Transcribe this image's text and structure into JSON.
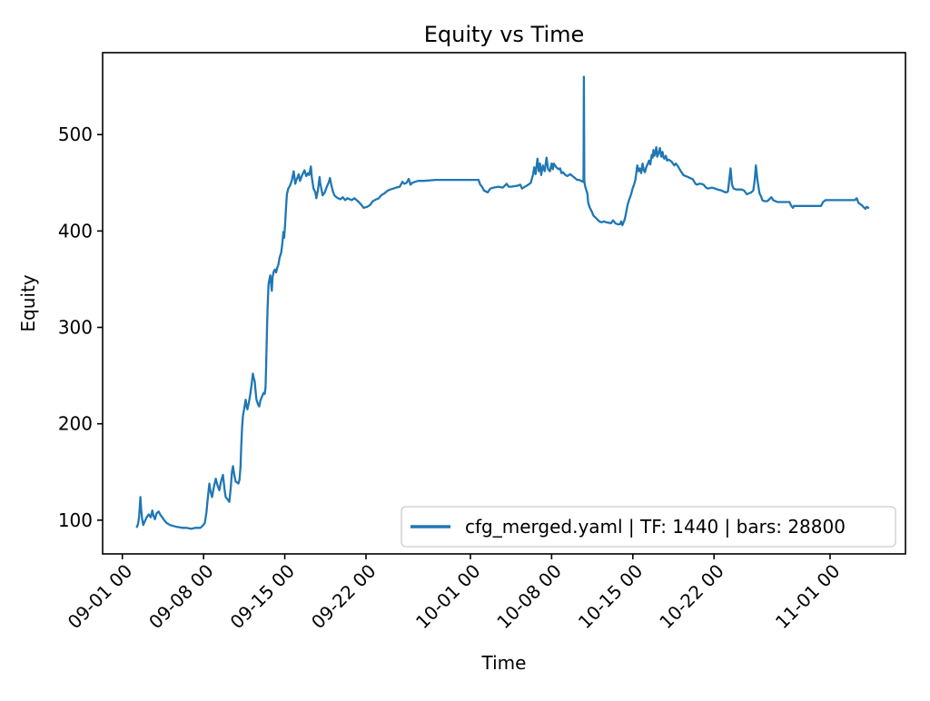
{
  "figure": {
    "background": "#ffffff"
  },
  "chart_data": {
    "type": "line",
    "title": "Equity vs Time",
    "xlabel": "Time",
    "ylabel": "Equity",
    "legend": {
      "label": "cfg_merged.yaml | TF: 1440 | bars: 28800",
      "position": "lower right"
    },
    "series_color": "#1f77b4",
    "spine_color": "#000000",
    "grid": false,
    "xlim_days": [
      -1.7,
      67.5
    ],
    "ylim": [
      65,
      585
    ],
    "x_epoch": "09-01 00",
    "xticks": [
      {
        "label": "09-01 00",
        "day": 0
      },
      {
        "label": "09-08 00",
        "day": 7
      },
      {
        "label": "09-15 00",
        "day": 14
      },
      {
        "label": "09-22 00",
        "day": 21
      },
      {
        "label": "10-01 00",
        "day": 30
      },
      {
        "label": "10-08 00",
        "day": 37
      },
      {
        "label": "10-15 00",
        "day": 44
      },
      {
        "label": "10-22 00",
        "day": 51
      },
      {
        "label": "11-01 00",
        "day": 61
      }
    ],
    "yticks": [
      100,
      200,
      300,
      400,
      500
    ],
    "points": [
      [
        1.25,
        93
      ],
      [
        1.35,
        96
      ],
      [
        1.45,
        104
      ],
      [
        1.56,
        124
      ],
      [
        1.62,
        112
      ],
      [
        1.7,
        102
      ],
      [
        1.8,
        95
      ],
      [
        1.95,
        99
      ],
      [
        2.1,
        103
      ],
      [
        2.27,
        106
      ],
      [
        2.45,
        103
      ],
      [
        2.58,
        110
      ],
      [
        2.7,
        104
      ],
      [
        2.81,
        101
      ],
      [
        2.95,
        107
      ],
      [
        3.13,
        109
      ],
      [
        3.3,
        105
      ],
      [
        3.44,
        103
      ],
      [
        3.6,
        100
      ],
      [
        3.83,
        97
      ],
      [
        4.1,
        95
      ],
      [
        4.38,
        94
      ],
      [
        4.7,
        93
      ],
      [
        5.16,
        92
      ],
      [
        5.5,
        92
      ],
      [
        5.94,
        91
      ],
      [
        6.3,
        92
      ],
      [
        6.72,
        92
      ],
      [
        6.9,
        94
      ],
      [
        7.11,
        97
      ],
      [
        7.25,
        108
      ],
      [
        7.34,
        120
      ],
      [
        7.5,
        138
      ],
      [
        7.6,
        130
      ],
      [
        7.73,
        124
      ],
      [
        7.9,
        135
      ],
      [
        8.05,
        143
      ],
      [
        8.2,
        136
      ],
      [
        8.36,
        131
      ],
      [
        8.5,
        140
      ],
      [
        8.67,
        147
      ],
      [
        8.8,
        133
      ],
      [
        8.91,
        124
      ],
      [
        9.1,
        121
      ],
      [
        9.22,
        119
      ],
      [
        9.35,
        135
      ],
      [
        9.45,
        150
      ],
      [
        9.53,
        156
      ],
      [
        9.65,
        147
      ],
      [
        9.77,
        140
      ],
      [
        9.9,
        139
      ],
      [
        10.0,
        138
      ],
      [
        10.1,
        142
      ],
      [
        10.18,
        155
      ],
      [
        10.25,
        178
      ],
      [
        10.32,
        197
      ],
      [
        10.4,
        209
      ],
      [
        10.5,
        215
      ],
      [
        10.63,
        225
      ],
      [
        10.7,
        219
      ],
      [
        10.78,
        215
      ],
      [
        10.9,
        222
      ],
      [
        11.02,
        230
      ],
      [
        11.15,
        242
      ],
      [
        11.25,
        252
      ],
      [
        11.33,
        247
      ],
      [
        11.41,
        244
      ],
      [
        11.5,
        232
      ],
      [
        11.56,
        225
      ],
      [
        11.7,
        220
      ],
      [
        11.8,
        218
      ],
      [
        11.9,
        224
      ],
      [
        12.03,
        228
      ],
      [
        12.1,
        230
      ],
      [
        12.19,
        232
      ],
      [
        12.27,
        231
      ],
      [
        12.34,
        238
      ],
      [
        12.4,
        262
      ],
      [
        12.46,
        295
      ],
      [
        12.52,
        322
      ],
      [
        12.6,
        345
      ],
      [
        12.68,
        350
      ],
      [
        12.75,
        354
      ],
      [
        12.82,
        345
      ],
      [
        12.88,
        338
      ],
      [
        12.95,
        352
      ],
      [
        13.05,
        358
      ],
      [
        13.15,
        360
      ],
      [
        13.25,
        357
      ],
      [
        13.35,
        362
      ],
      [
        13.45,
        365
      ],
      [
        13.55,
        372
      ],
      [
        13.7,
        378
      ],
      [
        13.8,
        388
      ],
      [
        13.88,
        399
      ],
      [
        13.95,
        393
      ],
      [
        14.02,
        405
      ],
      [
        14.1,
        422
      ],
      [
        14.18,
        438
      ],
      [
        14.3,
        444
      ],
      [
        14.45,
        447
      ],
      [
        14.6,
        452
      ],
      [
        14.77,
        462
      ],
      [
        14.9,
        449
      ],
      [
        15.0,
        453
      ],
      [
        15.08,
        455
      ],
      [
        15.2,
        459
      ],
      [
        15.31,
        452
      ],
      [
        15.5,
        458
      ],
      [
        15.7,
        463
      ],
      [
        15.85,
        457
      ],
      [
        16.0,
        460
      ],
      [
        16.1,
        458
      ],
      [
        16.25,
        467
      ],
      [
        16.33,
        456
      ],
      [
        16.48,
        444
      ],
      [
        16.64,
        440
      ],
      [
        16.72,
        434
      ],
      [
        16.85,
        442
      ],
      [
        17.0,
        456
      ],
      [
        17.05,
        450
      ],
      [
        17.15,
        444
      ],
      [
        17.27,
        437
      ],
      [
        17.45,
        440
      ],
      [
        17.6,
        445
      ],
      [
        17.81,
        451
      ],
      [
        17.89,
        455
      ],
      [
        18.0,
        448
      ],
      [
        18.15,
        441
      ],
      [
        18.28,
        437
      ],
      [
        18.45,
        435
      ],
      [
        18.59,
        434
      ],
      [
        18.8,
        433
      ],
      [
        19.0,
        435
      ],
      [
        19.2,
        432
      ],
      [
        19.4,
        434
      ],
      [
        19.6,
        433
      ],
      [
        19.77,
        432
      ],
      [
        20.0,
        434
      ],
      [
        20.3,
        431
      ],
      [
        20.55,
        428
      ],
      [
        20.8,
        424
      ],
      [
        21.1,
        425
      ],
      [
        21.35,
        427
      ],
      [
        21.6,
        431
      ],
      [
        21.9,
        433
      ],
      [
        22.11,
        434
      ],
      [
        22.3,
        437
      ],
      [
        22.58,
        439
      ],
      [
        22.89,
        442
      ],
      [
        23.1,
        443
      ],
      [
        23.36,
        444
      ],
      [
        23.6,
        445
      ],
      [
        23.91,
        446
      ],
      [
        24.14,
        451
      ],
      [
        24.3,
        449
      ],
      [
        24.5,
        450
      ],
      [
        24.69,
        454
      ],
      [
        24.84,
        448
      ],
      [
        25.0,
        450
      ],
      [
        25.23,
        451
      ],
      [
        25.5,
        452
      ],
      [
        26.0,
        452
      ],
      [
        27.0,
        453
      ],
      [
        28.0,
        453
      ],
      [
        29.0,
        453
      ],
      [
        30.0,
        453
      ],
      [
        30.7,
        453
      ],
      [
        30.85,
        448
      ],
      [
        31.0,
        446
      ],
      [
        31.17,
        442
      ],
      [
        31.48,
        440
      ],
      [
        31.6,
        442
      ],
      [
        31.72,
        444
      ],
      [
        32.0,
        445
      ],
      [
        32.4,
        446
      ],
      [
        32.8,
        445
      ],
      [
        33.13,
        449
      ],
      [
        33.3,
        446
      ],
      [
        33.52,
        446
      ],
      [
        34.06,
        447
      ],
      [
        34.3,
        448
      ],
      [
        34.45,
        444
      ],
      [
        34.7,
        446
      ],
      [
        35.0,
        448
      ],
      [
        35.2,
        450
      ],
      [
        35.39,
        458
      ],
      [
        35.5,
        466
      ],
      [
        35.62,
        459
      ],
      [
        35.78,
        475
      ],
      [
        35.9,
        462
      ],
      [
        36.0,
        470
      ],
      [
        36.1,
        458
      ],
      [
        36.25,
        468
      ],
      [
        36.4,
        462
      ],
      [
        36.56,
        476
      ],
      [
        36.7,
        464
      ],
      [
        36.85,
        462
      ],
      [
        37.0,
        470
      ],
      [
        37.1,
        464
      ],
      [
        37.19,
        470
      ],
      [
        37.4,
        466
      ],
      [
        37.6,
        464
      ],
      [
        37.73,
        465
      ],
      [
        37.85,
        460
      ],
      [
        37.97,
        461
      ],
      [
        38.2,
        458
      ],
      [
        38.36,
        457
      ],
      [
        38.6,
        459
      ],
      [
        38.8,
        457
      ],
      [
        39.0,
        455
      ],
      [
        39.2,
        453
      ],
      [
        39.38,
        453
      ],
      [
        39.55,
        452
      ],
      [
        39.7,
        451
      ],
      [
        39.75,
        452
      ],
      [
        39.78,
        560
      ],
      [
        39.82,
        451
      ],
      [
        39.9,
        446
      ],
      [
        40.08,
        439
      ],
      [
        40.16,
        429
      ],
      [
        40.3,
        424
      ],
      [
        40.47,
        420
      ],
      [
        40.6,
        416
      ],
      [
        40.86,
        413
      ],
      [
        41.1,
        410
      ],
      [
        41.3,
        409
      ],
      [
        41.5,
        410
      ],
      [
        41.7,
        409
      ],
      [
        42.11,
        408
      ],
      [
        42.3,
        411
      ],
      [
        42.5,
        408
      ],
      [
        42.7,
        407
      ],
      [
        42.89,
        407
      ],
      [
        43.0,
        410
      ],
      [
        43.1,
        406
      ],
      [
        43.2,
        409
      ],
      [
        43.3,
        412
      ],
      [
        43.44,
        420
      ],
      [
        43.55,
        427
      ],
      [
        43.67,
        432
      ],
      [
        43.85,
        438
      ],
      [
        43.98,
        444
      ],
      [
        44.1,
        448
      ],
      [
        44.22,
        453
      ],
      [
        44.38,
        468
      ],
      [
        44.5,
        462
      ],
      [
        44.6,
        465
      ],
      [
        44.72,
        460
      ],
      [
        44.84,
        470
      ],
      [
        44.95,
        463
      ],
      [
        45.05,
        461
      ],
      [
        45.15,
        466
      ],
      [
        45.3,
        470
      ],
      [
        45.39,
        473
      ],
      [
        45.5,
        469
      ],
      [
        45.63,
        479
      ],
      [
        45.7,
        476
      ],
      [
        45.78,
        484
      ],
      [
        45.85,
        478
      ],
      [
        45.95,
        481
      ],
      [
        46.02,
        487
      ],
      [
        46.1,
        477
      ],
      [
        46.2,
        480
      ],
      [
        46.33,
        486
      ],
      [
        46.45,
        477
      ],
      [
        46.56,
        482
      ],
      [
        46.65,
        476
      ],
      [
        46.72,
        475
      ],
      [
        46.85,
        478
      ],
      [
        46.95,
        473
      ],
      [
        47.1,
        474
      ],
      [
        47.34,
        472
      ],
      [
        47.45,
        470
      ],
      [
        47.58,
        468
      ],
      [
        47.7,
        470
      ],
      [
        47.9,
        467
      ],
      [
        48.13,
        462
      ],
      [
        48.25,
        460
      ],
      [
        48.36,
        458
      ],
      [
        48.55,
        457
      ],
      [
        48.75,
        456
      ],
      [
        48.9,
        455
      ],
      [
        49.14,
        454
      ],
      [
        49.25,
        452
      ],
      [
        49.4,
        449
      ],
      [
        49.53,
        448
      ],
      [
        49.7,
        449
      ],
      [
        49.9,
        449
      ],
      [
        50.1,
        448
      ],
      [
        50.31,
        445
      ],
      [
        50.5,
        444
      ],
      [
        50.8,
        445
      ],
      [
        51.1,
        444
      ],
      [
        51.3,
        443
      ],
      [
        51.64,
        442
      ],
      [
        51.8,
        441
      ],
      [
        52.03,
        440
      ],
      [
        52.2,
        441
      ],
      [
        52.42,
        465
      ],
      [
        52.55,
        448
      ],
      [
        52.7,
        444
      ],
      [
        52.9,
        443
      ],
      [
        53.1,
        443
      ],
      [
        53.36,
        443
      ],
      [
        53.59,
        442
      ],
      [
        53.83,
        438
      ],
      [
        54.0,
        439
      ],
      [
        54.2,
        440
      ],
      [
        54.38,
        442
      ],
      [
        54.5,
        452
      ],
      [
        54.61,
        468
      ],
      [
        54.75,
        452
      ],
      [
        54.92,
        439
      ],
      [
        55.05,
        436
      ],
      [
        55.16,
        432
      ],
      [
        55.31,
        431
      ],
      [
        55.6,
        431
      ],
      [
        55.94,
        435
      ],
      [
        56.1,
        432
      ],
      [
        56.48,
        430
      ],
      [
        56.8,
        430
      ],
      [
        57.2,
        430
      ],
      [
        57.5,
        430
      ],
      [
        57.66,
        426
      ],
      [
        57.8,
        424
      ],
      [
        57.89,
        426
      ],
      [
        58.2,
        426
      ],
      [
        58.6,
        426
      ],
      [
        59.0,
        426
      ],
      [
        59.5,
        426
      ],
      [
        60.0,
        426
      ],
      [
        60.23,
        426
      ],
      [
        60.39,
        430
      ],
      [
        60.6,
        432
      ],
      [
        61.0,
        432
      ],
      [
        61.5,
        432
      ],
      [
        62.0,
        432
      ],
      [
        62.5,
        432
      ],
      [
        63.13,
        432
      ],
      [
        63.3,
        434
      ],
      [
        63.45,
        429
      ],
      [
        63.6,
        428
      ],
      [
        63.8,
        426
      ],
      [
        63.95,
        424
      ],
      [
        64.05,
        423
      ],
      [
        64.15,
        425
      ],
      [
        64.3,
        424
      ]
    ]
  }
}
